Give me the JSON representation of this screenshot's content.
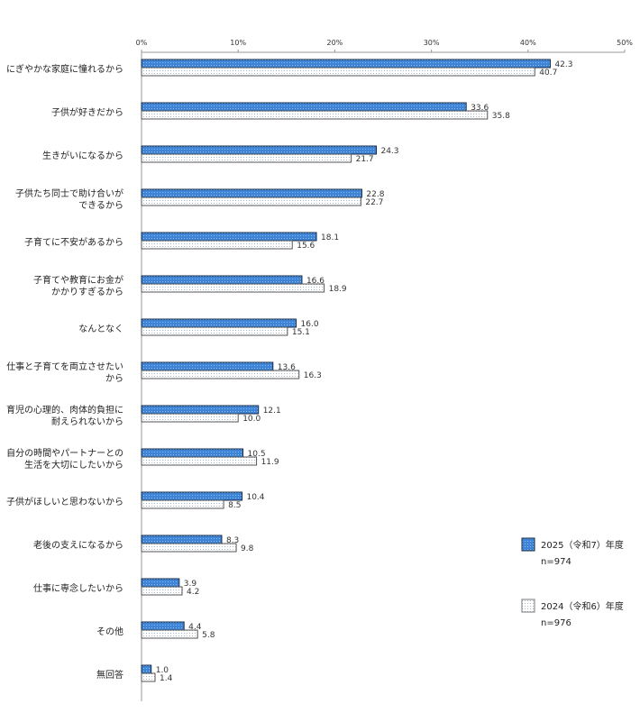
{
  "chart_data": {
    "type": "bar",
    "orientation": "horizontal",
    "xlim": [
      0,
      50
    ],
    "x_ticks": [
      "0%",
      "10%",
      "20%",
      "30%",
      "40%",
      "50%"
    ],
    "grid": false,
    "legend_placement": "right",
    "categories": [
      [
        "にぎやかな家庭に憧れるから"
      ],
      [
        "子供が好きだから"
      ],
      [
        "生きがいになるから"
      ],
      [
        "子供たち同士で助け合いが",
        "できるから"
      ],
      [
        "子育てに不安があるから"
      ],
      [
        "子育てや教育にお金が",
        "かかりすぎるから"
      ],
      [
        "なんとなく"
      ],
      [
        "仕事と子育てを両立させたい",
        "から"
      ],
      [
        "育児の心理的、肉体的負担に",
        "耐えられないから"
      ],
      [
        "自分の時間やパートナーとの",
        "生活を大切にしたいから"
      ],
      [
        "子供がほしいと思わないから"
      ],
      [
        "老後の支えになるから"
      ],
      [
        "仕事に専念したいから"
      ],
      [
        "その他"
      ],
      [
        "無回答"
      ]
    ],
    "series": [
      {
        "name": "2025（令和7）年度",
        "n": "n=974",
        "color": "#3d84d6",
        "values": [
          42.3,
          33.6,
          24.3,
          22.8,
          18.1,
          16.6,
          16.0,
          13.6,
          12.1,
          10.5,
          10.4,
          8.3,
          3.9,
          4.4,
          1.0
        ]
      },
      {
        "name": "2024（令和6）年度",
        "n": "n=976",
        "color": "#e6eef5",
        "values": [
          40.7,
          35.8,
          21.7,
          22.7,
          15.6,
          18.9,
          15.1,
          16.3,
          10.0,
          11.9,
          8.5,
          9.8,
          4.2,
          5.8,
          1.4
        ]
      }
    ]
  }
}
